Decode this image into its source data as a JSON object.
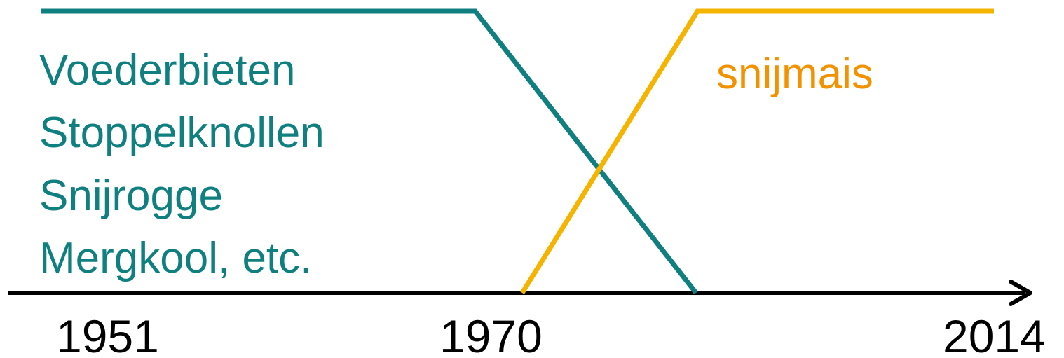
{
  "chart_data": {
    "type": "line",
    "series": [
      {
        "color": "#0f7f80",
        "labels": [
          "Voederbieten",
          "Stoppelknollen",
          "Snijrogge",
          "Mergkool, etc."
        ]
      },
      {
        "color": "#f5b400",
        "labels": [
          "snijmais"
        ]
      }
    ],
    "label_colors": {
      "teal": "#0f7f80",
      "orange": "#f39200"
    },
    "timeline": {
      "ticks": [
        "1951",
        "1970",
        "2014"
      ],
      "color": "#000000",
      "arrow": "right"
    }
  }
}
